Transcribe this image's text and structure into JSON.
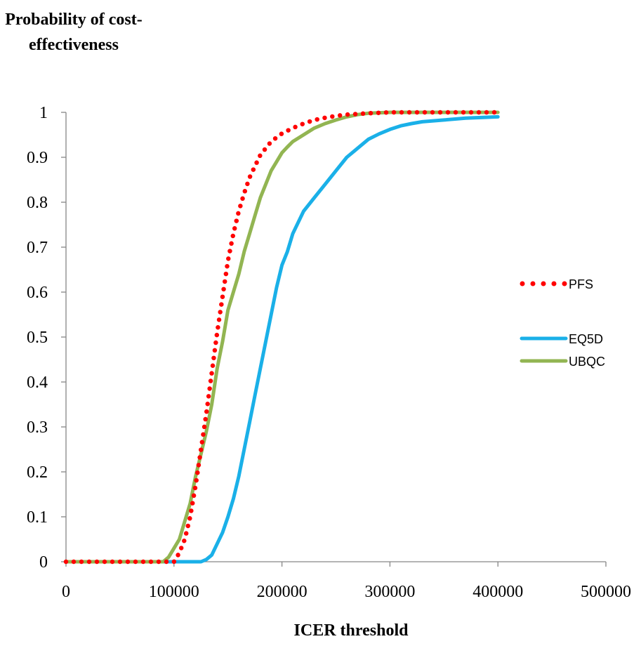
{
  "chart_data": {
    "type": "line",
    "ylabel": "Probability of cost-effectiveness",
    "xlabel": "ICER threshold",
    "xlim": [
      0,
      500000
    ],
    "ylim": [
      0,
      1
    ],
    "x_ticks": [
      "0",
      "100000",
      "200000",
      "300000",
      "400000",
      "500000"
    ],
    "y_ticks": [
      "0",
      "0.1",
      "0.2",
      "0.3",
      "0.4",
      "0.5",
      "0.6",
      "0.7",
      "0.8",
      "0.9",
      "1"
    ],
    "legend_position": "right",
    "grid": false,
    "series": [
      {
        "name": "PFS",
        "color": "#FF0000",
        "style": "dotted",
        "points": [
          [
            0,
            0
          ],
          [
            100000,
            0
          ],
          [
            105000,
            0.02
          ],
          [
            110000,
            0.05
          ],
          [
            115000,
            0.1
          ],
          [
            120000,
            0.17
          ],
          [
            125000,
            0.25
          ],
          [
            130000,
            0.33
          ],
          [
            135000,
            0.42
          ],
          [
            140000,
            0.51
          ],
          [
            145000,
            0.59
          ],
          [
            150000,
            0.67
          ],
          [
            155000,
            0.73
          ],
          [
            160000,
            0.78
          ],
          [
            165000,
            0.82
          ],
          [
            170000,
            0.855
          ],
          [
            175000,
            0.88
          ],
          [
            180000,
            0.905
          ],
          [
            185000,
            0.92
          ],
          [
            190000,
            0.935
          ],
          [
            200000,
            0.953
          ],
          [
            210000,
            0.965
          ],
          [
            220000,
            0.975
          ],
          [
            230000,
            0.983
          ],
          [
            240000,
            0.988
          ],
          [
            250000,
            0.992
          ],
          [
            260000,
            0.995
          ],
          [
            280000,
            0.998
          ],
          [
            300000,
            1.0
          ],
          [
            350000,
            1.0
          ],
          [
            400000,
            1.0
          ]
        ]
      },
      {
        "name": "EQ5D",
        "color": "#1AB0E8",
        "style": "solid",
        "points": [
          [
            85000,
            0
          ],
          [
            125000,
            0
          ],
          [
            130000,
            0.005
          ],
          [
            135000,
            0.015
          ],
          [
            140000,
            0.04
          ],
          [
            145000,
            0.065
          ],
          [
            150000,
            0.1
          ],
          [
            155000,
            0.14
          ],
          [
            160000,
            0.19
          ],
          [
            165000,
            0.25
          ],
          [
            170000,
            0.31
          ],
          [
            175000,
            0.37
          ],
          [
            180000,
            0.43
          ],
          [
            185000,
            0.49
          ],
          [
            190000,
            0.55
          ],
          [
            195000,
            0.61
          ],
          [
            200000,
            0.66
          ],
          [
            205000,
            0.69
          ],
          [
            210000,
            0.73
          ],
          [
            220000,
            0.78
          ],
          [
            230000,
            0.81
          ],
          [
            240000,
            0.84
          ],
          [
            250000,
            0.87
          ],
          [
            260000,
            0.9
          ],
          [
            270000,
            0.92
          ],
          [
            280000,
            0.94
          ],
          [
            290000,
            0.952
          ],
          [
            300000,
            0.962
          ],
          [
            310000,
            0.97
          ],
          [
            320000,
            0.975
          ],
          [
            330000,
            0.979
          ],
          [
            350000,
            0.983
          ],
          [
            370000,
            0.987
          ],
          [
            400000,
            0.99
          ]
        ]
      },
      {
        "name": "UBQC",
        "color": "#92B552",
        "style": "solid",
        "points": [
          [
            0,
            0
          ],
          [
            90000,
            0
          ],
          [
            95000,
            0.01
          ],
          [
            100000,
            0.03
          ],
          [
            105000,
            0.05
          ],
          [
            110000,
            0.09
          ],
          [
            115000,
            0.13
          ],
          [
            120000,
            0.19
          ],
          [
            125000,
            0.24
          ],
          [
            130000,
            0.29
          ],
          [
            135000,
            0.35
          ],
          [
            140000,
            0.43
          ],
          [
            145000,
            0.49
          ],
          [
            150000,
            0.56
          ],
          [
            155000,
            0.6
          ],
          [
            160000,
            0.64
          ],
          [
            165000,
            0.69
          ],
          [
            170000,
            0.73
          ],
          [
            175000,
            0.77
          ],
          [
            180000,
            0.81
          ],
          [
            185000,
            0.84
          ],
          [
            190000,
            0.87
          ],
          [
            195000,
            0.89
          ],
          [
            200000,
            0.91
          ],
          [
            205000,
            0.923
          ],
          [
            210000,
            0.935
          ],
          [
            220000,
            0.95
          ],
          [
            230000,
            0.965
          ],
          [
            240000,
            0.975
          ],
          [
            250000,
            0.983
          ],
          [
            260000,
            0.99
          ],
          [
            270000,
            0.995
          ],
          [
            280000,
            0.998
          ],
          [
            300000,
            1.0
          ],
          [
            350000,
            1.0
          ],
          [
            400000,
            1.0
          ]
        ]
      }
    ]
  }
}
